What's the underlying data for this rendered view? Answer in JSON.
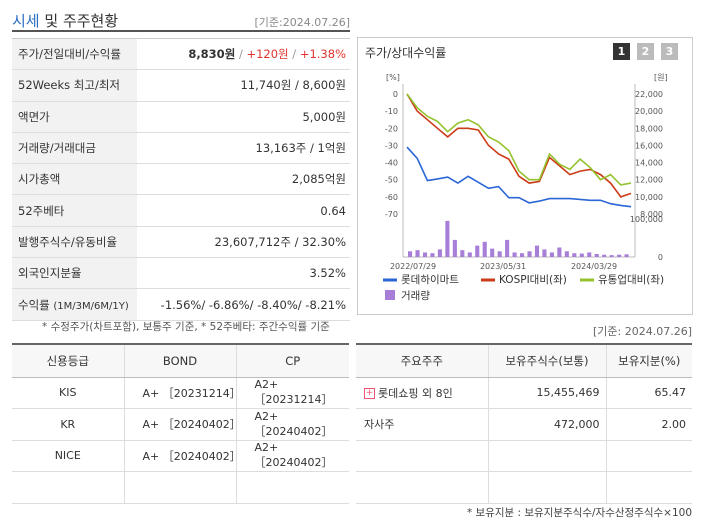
{
  "header": {
    "title_blue": "시세",
    "title_rest": " 및 주주현황",
    "date": "[기준:2024.07.26]"
  },
  "info_rows": [
    {
      "label": "주가/전일대비/수익률",
      "price": "8,830원",
      "change": "+120원",
      "rate": "+1.38%"
    },
    {
      "label": "52Weeks 최고/최저",
      "value": "11,740원 / 8,600원"
    },
    {
      "label": "액면가",
      "value": "5,000원"
    },
    {
      "label": "거래량/거래대금",
      "value": "13,163주 / 1억원"
    },
    {
      "label": "시가총액",
      "value": "2,085억원"
    },
    {
      "label": "52주베타",
      "value": "0.64"
    },
    {
      "label": "발행주식수/유동비율",
      "value": "23,607,712주 / 32.30%"
    },
    {
      "label": "외국인지분율",
      "value": "3.52%"
    },
    {
      "label": "수익률",
      "label_small": "(1M/3M/6M/1Y)",
      "value": "-1.56%/ -6.86%/ -8.40%/ -8.21%"
    }
  ],
  "note1": "* 수정주가(차트포함), 보통주 기준, * 52주베타: 주간수익률 기준",
  "chart": {
    "title": "주가/상대수익률",
    "pages": [
      "1",
      "2",
      "3"
    ],
    "left_unit": "[%]",
    "right_unit": "[원]",
    "left_ticks": [
      "0",
      "-10",
      "-20",
      "-30",
      "-40",
      "-50",
      "-60",
      "-70"
    ],
    "right_ticks": [
      "22,000",
      "20,000",
      "18,000",
      "16,000",
      "14,000",
      "12,000",
      "10,000",
      "8,000"
    ],
    "vol_ticks": [
      "100,000",
      "0"
    ],
    "x_ticks": [
      "2022/07/29",
      "2023/05/31",
      "2024/03/29"
    ],
    "legend": [
      "롯데하이마트",
      "KOSPI대비(좌)",
      "유통업대비(좌)",
      "거래량"
    ],
    "colors": {
      "stock": "#2b66d6",
      "kospi": "#cc3b17",
      "retail": "#93c22c",
      "volume": "#a77fd8"
    }
  },
  "chart_data": {
    "type": "line",
    "x_labels": [
      "2022/07/29",
      "2023/05/31",
      "2024/03/29"
    ],
    "series": [
      {
        "name": "롯데하이마트",
        "axis": "right",
        "values": [
          15800,
          14500,
          11900,
          12100,
          12300,
          11600,
          12400,
          11700,
          11000,
          11200,
          9900,
          9900,
          9300,
          9500,
          9800,
          9800,
          9800,
          9700,
          9600,
          9600,
          9200,
          9000,
          8850
        ]
      },
      {
        "name": "KOSPI대비(좌)",
        "axis": "left",
        "values": [
          0,
          -10,
          -15,
          -20,
          -25,
          -20,
          -20,
          -21,
          -30,
          -35,
          -38,
          -48,
          -52,
          -51,
          -37,
          -42,
          -47,
          -45,
          -44,
          -47,
          -52,
          -60,
          -58
        ]
      },
      {
        "name": "유통업대비(좌)",
        "axis": "left",
        "values": [
          0,
          -8,
          -13,
          -16,
          -22,
          -17,
          -15,
          -18,
          -25,
          -28,
          -33,
          -45,
          -50,
          -50,
          -35,
          -41,
          -44,
          -38,
          -43,
          -50,
          -47,
          -53,
          -52
        ]
      },
      {
        "name": "거래량",
        "axis": "volume",
        "values": [
          15000,
          18000,
          12000,
          10000,
          20000,
          95000,
          45000,
          18000,
          12000,
          30000,
          40000,
          22000,
          15000,
          45000,
          12000,
          10000,
          15000,
          30000,
          20000,
          12000,
          25000,
          15000,
          10000,
          9000,
          12000,
          8000,
          6000,
          5000,
          6000,
          7000
        ]
      }
    ],
    "left_range": [
      -70,
      0
    ],
    "right_range": [
      8000,
      22000
    ],
    "volume_range": [
      0,
      100000
    ],
    "legend": "bottom"
  },
  "date2": "[기준: 2024.07.26]",
  "credit": {
    "headers": [
      "신용등급",
      "BOND",
      "CP"
    ],
    "rows": [
      [
        "KIS",
        "A+ ［20231214］",
        "A2+ ［20231214］"
      ],
      [
        "KR",
        "A+ ［20240402］",
        "A2+ ［20240402］"
      ],
      [
        "NICE",
        "A+ ［20240402］",
        "A2+ ［20240402］"
      ],
      [
        "",
        "",
        ""
      ]
    ]
  },
  "holders": {
    "headers": [
      "주요주주",
      "보유주식수(보통)",
      "보유지분(%)"
    ],
    "rows": [
      [
        "롯데쇼핑 외 8인",
        "15,455,469",
        "65.47"
      ],
      [
        "자사주",
        "472,000",
        "2.00"
      ],
      [
        "",
        "",
        ""
      ],
      [
        "",
        "",
        ""
      ]
    ]
  },
  "note2": "* 보유지분 : 보유지분주식수/자수산정주식수×100"
}
